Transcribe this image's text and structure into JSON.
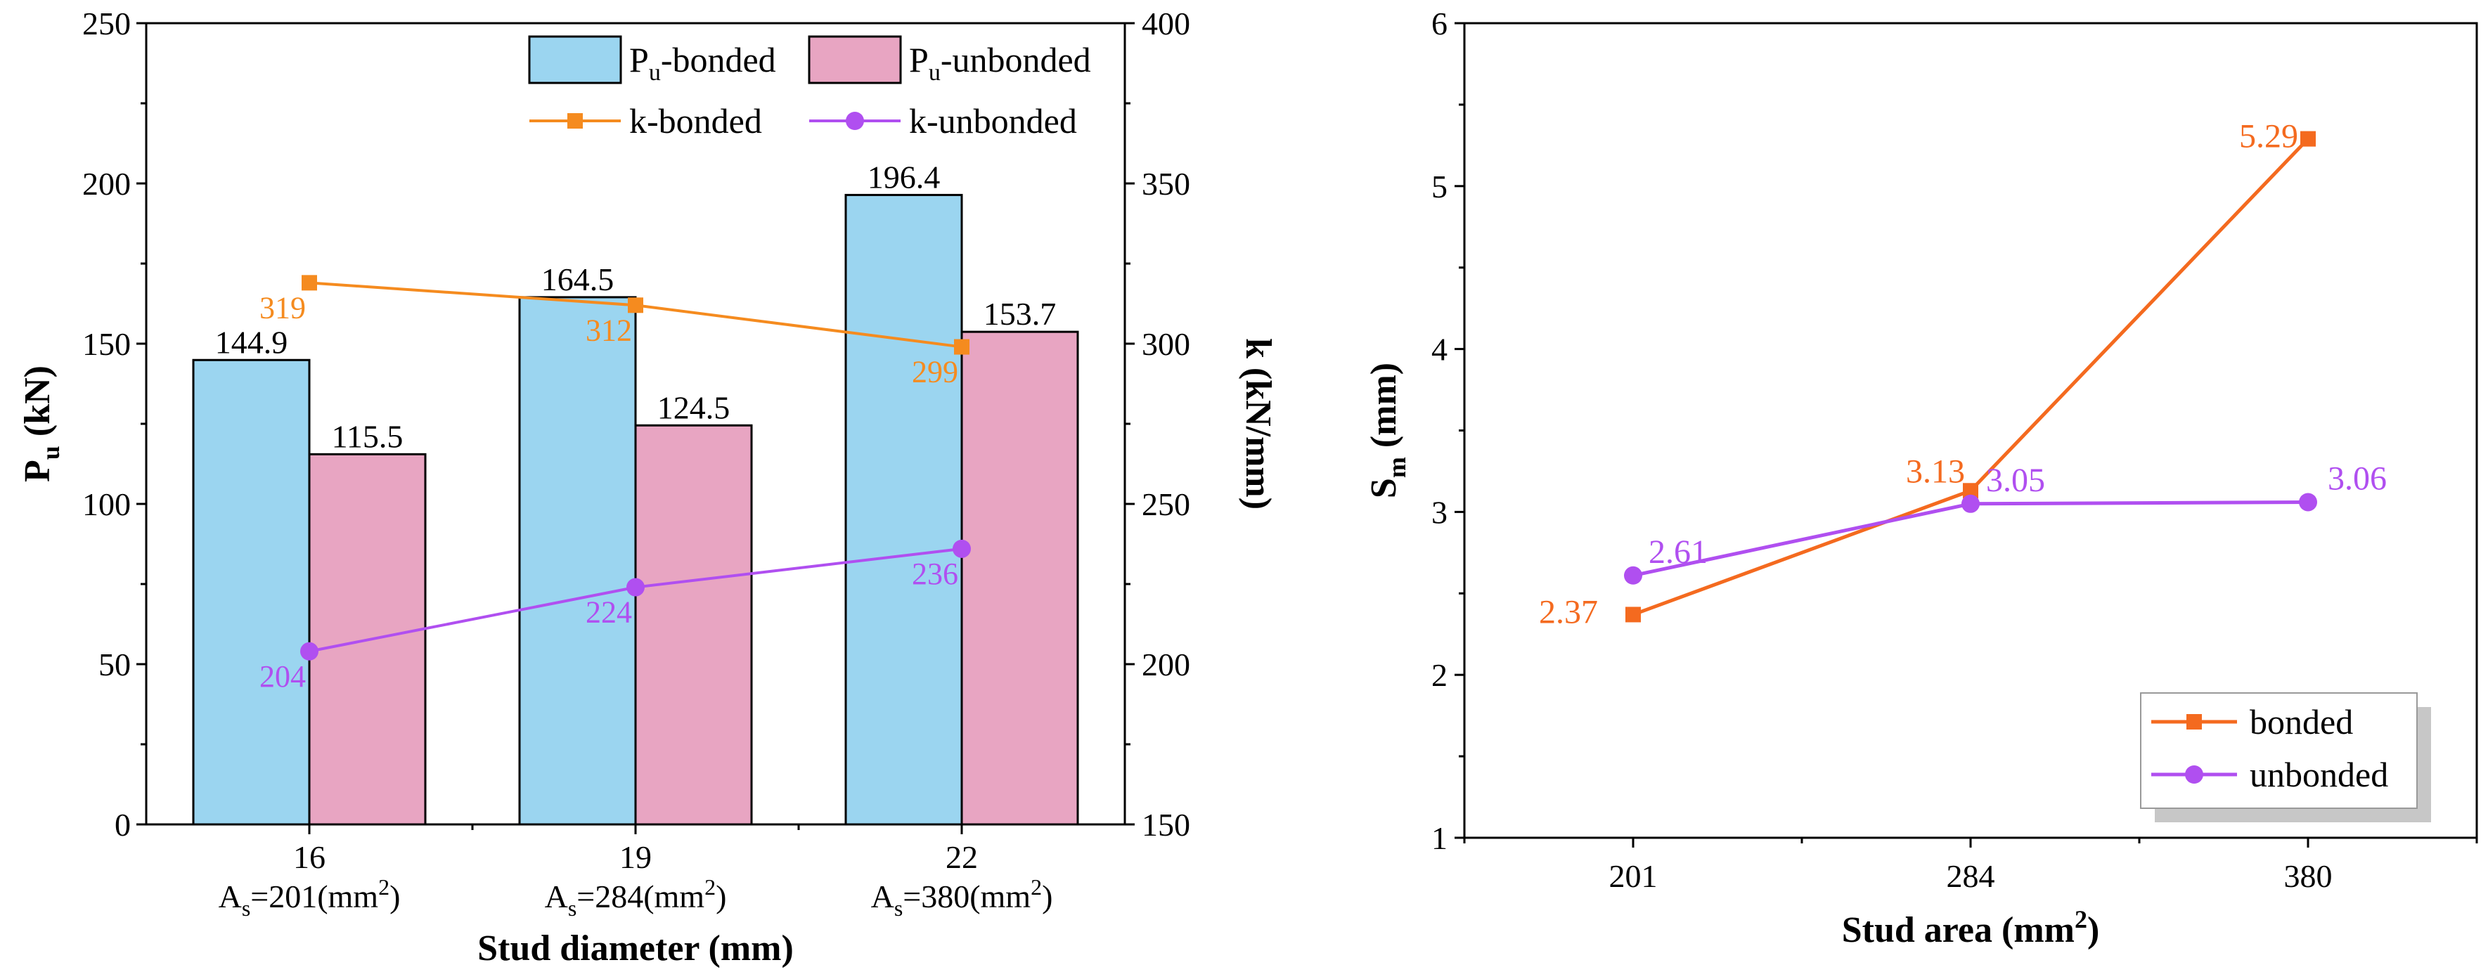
{
  "chart_data": [
    {
      "type": "bar",
      "title": "",
      "xlabel": "Stud diameter (mm)",
      "ylabel": "P_u (kN)",
      "ylabel_right": "k (kN/mm)",
      "categories": [
        "16",
        "19",
        "22"
      ],
      "category_sublabels": [
        {
          "pre": "A",
          "sub": "s",
          "mid": "=201(mm",
          "sup": "2",
          "post": ")"
        },
        {
          "pre": "A",
          "sub": "s",
          "mid": "=284(mm",
          "sup": "2",
          "post": ")"
        },
        {
          "pre": "A",
          "sub": "s",
          "mid": "=380(mm",
          "sup": "2",
          "post": ")"
        }
      ],
      "ylim": [
        0,
        250
      ],
      "yticks": [
        "0",
        "50",
        "100",
        "150",
        "200",
        "250"
      ],
      "ylim_right": [
        150,
        400
      ],
      "yticks_right": [
        "150",
        "200",
        "250",
        "300",
        "350",
        "400"
      ],
      "bar_series": [
        {
          "name": "P_u-bonded",
          "legend_pre": "P",
          "legend_sub": "u",
          "legend_post": "-bonded",
          "color": "#9bd5f0",
          "values": [
            144.9,
            164.5,
            196.4
          ],
          "labels": [
            "144.9",
            "164.5",
            "196.4"
          ]
        },
        {
          "name": "P_u-unbonded",
          "legend_pre": "P",
          "legend_sub": "u",
          "legend_post": "-unbonded",
          "color": "#e8a5c2",
          "values": [
            115.5,
            124.5,
            153.7
          ],
          "labels": [
            "115.5",
            "124.5",
            "153.7"
          ]
        }
      ],
      "line_series": [
        {
          "name": "k-bonded",
          "axis": "right",
          "marker": "square",
          "color": "#f58b1f",
          "values": [
            319,
            312,
            299
          ],
          "labels": [
            "319",
            "312",
            "299"
          ]
        },
        {
          "name": "k-unbonded",
          "axis": "right",
          "marker": "circle",
          "color": "#b04ff0",
          "values": [
            204,
            224,
            236
          ],
          "labels": [
            "204",
            "224",
            "236"
          ]
        }
      ],
      "legend_position": "top-right"
    },
    {
      "type": "line",
      "title": "",
      "xlabel": "Stud area (mm²)",
      "xlabel_main": "Stud area (mm",
      "xlabel_sup": "2",
      "xlabel_post": ")",
      "ylabel": "S_m (mm)",
      "ylabel_main": "S",
      "ylabel_sub": "m",
      "ylabel_post": " (mm)",
      "x": [
        "201",
        "284",
        "380"
      ],
      "ylim": [
        1,
        6
      ],
      "yticks": [
        "1",
        "2",
        "3",
        "4",
        "5",
        "6"
      ],
      "series": [
        {
          "name": "bonded",
          "marker": "square",
          "color": "#f46a1f",
          "values": [
            2.37,
            3.13,
            5.29
          ],
          "labels": [
            "2.37",
            "3.13",
            "5.29"
          ]
        },
        {
          "name": "unbonded",
          "marker": "circle",
          "color": "#b04ff0",
          "values": [
            2.61,
            3.05,
            3.06
          ],
          "labels": [
            "2.61",
            "3.05",
            "3.06"
          ]
        }
      ],
      "legend_position": "bottom-right"
    }
  ]
}
